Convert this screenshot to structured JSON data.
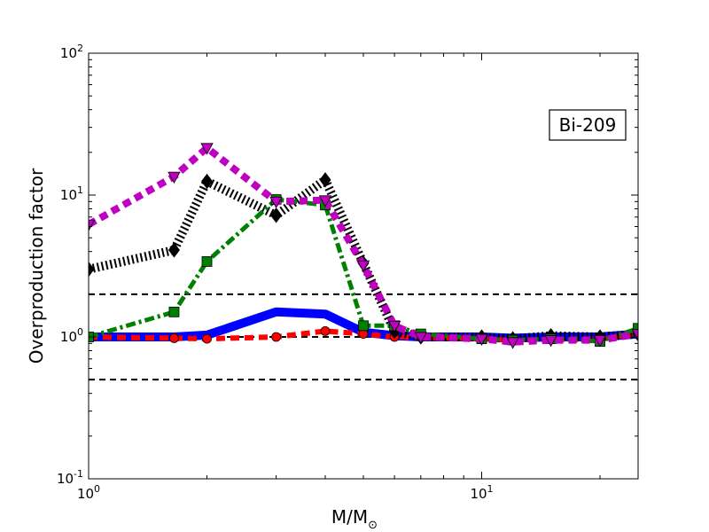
{
  "chart_data": {
    "type": "line",
    "xlabel": "M/M",
    "xlabel_sub": "⊙",
    "ylabel": "Overproduction factor",
    "xscale": "log",
    "yscale": "log",
    "xlim": [
      1,
      25
    ],
    "ylim": [
      0.1,
      100
    ],
    "x_ticks": [
      {
        "value": 1,
        "base": "10",
        "exp": "0"
      },
      {
        "value": 10,
        "base": "10",
        "exp": "1"
      }
    ],
    "y_ticks": [
      {
        "value": 0.1,
        "base": "10",
        "exp": "-1"
      },
      {
        "value": 1,
        "base": "10",
        "exp": "0"
      },
      {
        "value": 10,
        "base": "10",
        "exp": "1"
      },
      {
        "value": 100,
        "base": "10",
        "exp": "2"
      }
    ],
    "annotation": "Bi-209",
    "reference_lines": [
      2.0,
      0.5,
      1.0
    ],
    "series": [
      {
        "color": "#0000ff",
        "style": "solid",
        "marker": "none",
        "x": [
          1,
          1.65,
          2,
          3,
          4,
          5,
          6,
          7,
          10,
          12,
          15,
          20,
          25
        ],
        "y": [
          1.0,
          1.0,
          1.03,
          1.5,
          1.45,
          1.08,
          1.02,
          1.0,
          1.0,
          0.98,
          1.0,
          1.0,
          1.05
        ]
      },
      {
        "color": "#ff0000",
        "style": "dashed",
        "marker": "circle",
        "x": [
          1,
          1.65,
          2,
          3,
          4,
          5,
          6,
          7,
          10,
          12,
          15,
          20,
          25
        ],
        "y": [
          1.0,
          0.98,
          0.97,
          1.0,
          1.1,
          1.05,
          1.0,
          1.0,
          0.97,
          0.95,
          0.96,
          0.97,
          1.05
        ]
      },
      {
        "color": "#000000",
        "style": "dotted",
        "marker": "diamond",
        "x": [
          1,
          1.65,
          2,
          3,
          4,
          5,
          6,
          7,
          10,
          12,
          15,
          20,
          25
        ],
        "y": [
          3.0,
          4.1,
          12.5,
          7.2,
          12.8,
          3.3,
          1.1,
          1.0,
          1.0,
          0.97,
          1.02,
          1.0,
          1.05
        ]
      },
      {
        "color": "#008000",
        "style": "dashdot",
        "marker": "square",
        "x": [
          1,
          1.65,
          2,
          3,
          4,
          5,
          6,
          7,
          10,
          12,
          15,
          20,
          25
        ],
        "y": [
          1.0,
          1.5,
          3.4,
          9.3,
          8.5,
          1.2,
          1.2,
          1.05,
          0.97,
          0.95,
          0.97,
          0.93,
          1.15
        ]
      },
      {
        "color": "#c000c0",
        "style": "dotted-thick",
        "marker": "triangle-down",
        "x": [
          1,
          1.65,
          2,
          3,
          4,
          5,
          6,
          7,
          10,
          12,
          15,
          20,
          25
        ],
        "y": [
          6.2,
          13.5,
          21.5,
          9.0,
          9.2,
          3.2,
          1.2,
          1.0,
          0.97,
          0.92,
          0.95,
          0.95,
          1.05
        ]
      }
    ]
  }
}
